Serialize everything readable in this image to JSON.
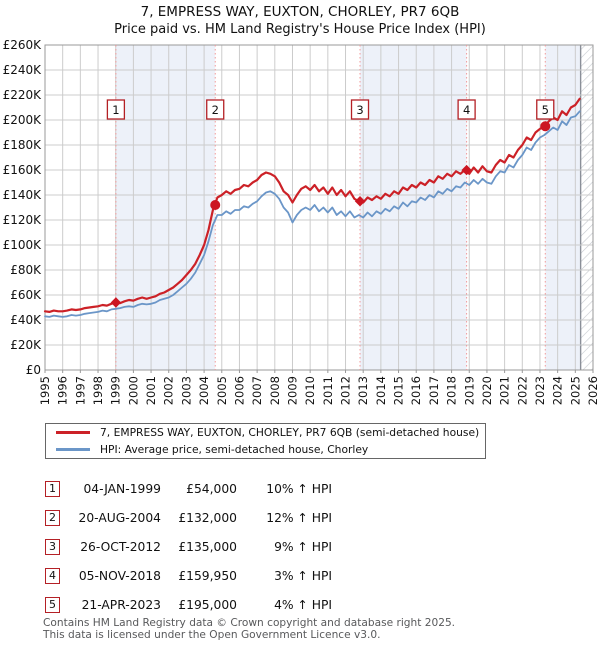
{
  "title": "7, EMPRESS WAY, EUXTON, CHORLEY, PR7 6QB",
  "subtitle": "Price paid vs. HM Land Registry's House Price Index (HPI)",
  "colors": {
    "property_line": "#cc2127",
    "hpi_line": "#6b96c8",
    "sale_marker": "#cc1622",
    "dashed_line": "#f19999",
    "band_fill": "#edf1f9",
    "grid": "#cccccc",
    "axis_border": "#999999",
    "number_box_border": "#b42025",
    "hatch_line": "#c5c8ce",
    "data_end_line": "#8a8f98"
  },
  "chart_data": {
    "type": "line",
    "unit": "GBP thousands",
    "x_range": [
      1995,
      2026
    ],
    "y_range_thousands": [
      0,
      260
    ],
    "y_tick_values_thousands": [
      0,
      20,
      40,
      60,
      80,
      100,
      120,
      140,
      160,
      180,
      200,
      220,
      240,
      260
    ],
    "y_tick_labels": [
      "£0",
      "£20K",
      "£40K",
      "£60K",
      "£80K",
      "£100K",
      "£120K",
      "£140K",
      "£160K",
      "£180K",
      "£200K",
      "£220K",
      "£240K",
      "£260K"
    ],
    "x_tick_years": [
      1995,
      1996,
      1997,
      1998,
      1999,
      2000,
      2001,
      2002,
      2003,
      2004,
      2005,
      2006,
      2007,
      2008,
      2009,
      2010,
      2011,
      2012,
      2013,
      2014,
      2015,
      2016,
      2017,
      2018,
      2019,
      2020,
      2021,
      2022,
      2023,
      2024,
      2025,
      2026
    ],
    "x_start": 1995.0,
    "x_step": 0.25,
    "hatch_start_x": 2025.3,
    "ownership_bands": [
      [
        1999.01,
        2004.63
      ],
      [
        2012.82,
        2018.85
      ],
      [
        2023.3,
        2025.3
      ]
    ],
    "series": [
      {
        "name": "7, EMPRESS WAY, EUXTON, CHORLEY, PR7 6QB (semi-detached house)",
        "color_key": "property_line",
        "width": 2.2,
        "values_thousands": [
          47,
          46.5,
          47.5,
          47,
          47,
          47.5,
          48.5,
          48,
          48.5,
          49.5,
          50,
          50.5,
          51,
          52,
          51.5,
          53,
          54,
          53.5,
          55,
          56,
          55.5,
          57,
          58,
          57,
          58,
          59,
          61,
          62,
          64,
          66,
          69,
          72,
          76,
          80,
          85,
          92,
          100,
          112,
          128,
          138,
          140,
          143,
          141,
          144,
          145,
          148,
          147,
          150,
          152,
          156,
          158,
          157,
          155,
          150,
          143,
          140,
          134,
          140,
          145,
          147,
          144,
          148,
          143,
          146,
          141,
          146,
          140,
          144,
          139,
          143,
          137,
          135,
          134,
          138,
          136,
          139,
          137,
          141,
          139,
          143,
          141,
          146,
          144,
          148,
          146,
          150,
          148,
          152,
          150,
          155,
          153,
          157,
          155,
          159,
          157,
          160,
          157,
          162,
          158,
          163,
          159,
          158,
          164,
          168,
          166,
          172,
          170,
          176,
          180,
          186,
          184,
          190,
          193,
          195,
          199,
          202,
          200,
          207,
          204,
          210,
          212,
          217
        ]
      },
      {
        "name": "HPI: Average price, semi-detached house, Chorley",
        "color_key": "hpi_line",
        "width": 1.8,
        "values_thousands": [
          43,
          42.5,
          43.5,
          43,
          42.5,
          43,
          44,
          43.5,
          44,
          45,
          45.5,
          46,
          46.5,
          47.5,
          47,
          48.5,
          49,
          49.5,
          50.5,
          51,
          50.5,
          52,
          53,
          52.5,
          53,
          54,
          56,
          57,
          58,
          60,
          63,
          66,
          69,
          73,
          78,
          85,
          92,
          103,
          116,
          124,
          124,
          127,
          125,
          128,
          128,
          131,
          130,
          133,
          135,
          139,
          142,
          143,
          141,
          137,
          130,
          126,
          118,
          124,
          128,
          130,
          128,
          132,
          127,
          130,
          126,
          130,
          124,
          127,
          123,
          127,
          122,
          124,
          122,
          126,
          123,
          127,
          125,
          129,
          127,
          131,
          129,
          134,
          131,
          135,
          134,
          138,
          136,
          140,
          138,
          143,
          141,
          145,
          143,
          147,
          146,
          150,
          148,
          152,
          149,
          153,
          150,
          149,
          155,
          159,
          158,
          164,
          162,
          168,
          172,
          178,
          176,
          182,
          186,
          188,
          191,
          194,
          192,
          199,
          196,
          202,
          203,
          207
        ]
      }
    ],
    "sales": [
      {
        "n": "1",
        "x": 1999.01,
        "price_thousands": 54,
        "shape": "diamond"
      },
      {
        "n": "2",
        "x": 2004.63,
        "price_thousands": 132,
        "shape": "circle"
      },
      {
        "n": "3",
        "x": 2012.82,
        "price_thousands": 135,
        "shape": "diamond"
      },
      {
        "n": "4",
        "x": 2018.85,
        "price_thousands": 159.95,
        "shape": "diamond"
      },
      {
        "n": "5",
        "x": 2023.3,
        "price_thousands": 195,
        "shape": "circle"
      }
    ]
  },
  "legend": {
    "items": [
      {
        "label": "7, EMPRESS WAY, EUXTON, CHORLEY, PR7 6QB (semi-detached house)"
      },
      {
        "label": "HPI: Average price, semi-detached house, Chorley"
      }
    ]
  },
  "table": {
    "rows": [
      {
        "n": "1",
        "date": "04-JAN-1999",
        "price": "£54,000",
        "hpi": "10% ↑ HPI"
      },
      {
        "n": "2",
        "date": "20-AUG-2004",
        "price": "£132,000",
        "hpi": "12% ↑ HPI"
      },
      {
        "n": "3",
        "date": "26-OCT-2012",
        "price": "£135,000",
        "hpi": "9% ↑ HPI"
      },
      {
        "n": "4",
        "date": "05-NOV-2018",
        "price": "£159,950",
        "hpi": "3% ↑ HPI"
      },
      {
        "n": "5",
        "date": "21-APR-2023",
        "price": "£195,000",
        "hpi": "4% ↑ HPI"
      }
    ]
  },
  "footer": {
    "line1": "Contains HM Land Registry data © Crown copyright and database right 2025.",
    "line2": "This data is licensed under the Open Government Licence v3.0."
  }
}
